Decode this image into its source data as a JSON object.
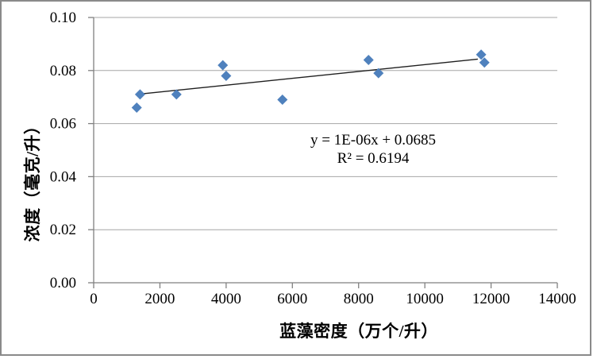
{
  "chart": {
    "y_axis_title": "浓度（毫克/升）",
    "x_axis_title": "蓝藻密度（万个/升）",
    "equation": {
      "line1": "y = 1E-06x + 0.0685",
      "line2": "R² = 0.6194"
    }
  },
  "chart_data": {
    "type": "scatter",
    "title": "",
    "xlabel": "蓝藻密度（万个/升）",
    "ylabel": "浓度（毫克/升）",
    "xlim": [
      0,
      14000
    ],
    "ylim": [
      0,
      0.1
    ],
    "grid": true,
    "legend": false,
    "x_ticks": [
      0,
      2000,
      4000,
      6000,
      8000,
      10000,
      12000,
      14000
    ],
    "x_tick_labels": [
      "0",
      "2000",
      "4000",
      "6000",
      "8000",
      "10000",
      "12000",
      "14000"
    ],
    "y_ticks": [
      0,
      0.02,
      0.04,
      0.06,
      0.08,
      0.1
    ],
    "y_tick_labels": [
      "0.00",
      "0.02",
      "0.04",
      "0.06",
      "0.08",
      "0.10"
    ],
    "points": [
      {
        "x": 1300,
        "y": 0.066
      },
      {
        "x": 1400,
        "y": 0.071
      },
      {
        "x": 2500,
        "y": 0.071
      },
      {
        "x": 3900,
        "y": 0.082
      },
      {
        "x": 4000,
        "y": 0.078
      },
      {
        "x": 5700,
        "y": 0.069
      },
      {
        "x": 8300,
        "y": 0.084
      },
      {
        "x": 8600,
        "y": 0.079
      },
      {
        "x": 11700,
        "y": 0.086
      },
      {
        "x": 11800,
        "y": 0.083
      }
    ],
    "trendline": {
      "x1": 1300,
      "y1": 0.071,
      "x2": 11600,
      "y2": 0.0843,
      "equation": "y = 1E-06x + 0.0685",
      "r_squared": "R² = 0.6194"
    },
    "marker": {
      "shape": "diamond",
      "color": "#4F81BD",
      "size": 13
    },
    "colors": {
      "gridline": "#A6A6A6",
      "axis": "#808080",
      "trendline": "#1f1f1f",
      "text": "#000000",
      "frame_border": "#8a8a8a"
    }
  }
}
